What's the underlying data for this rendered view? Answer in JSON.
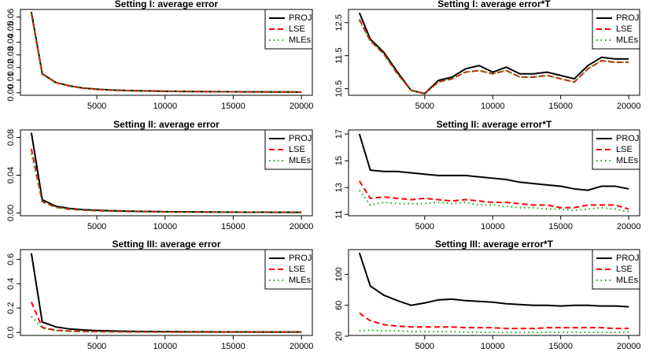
{
  "chart_data": [
    {
      "type": "line",
      "title": "Setting I: average error",
      "legend": "topright",
      "x": [
        200,
        1000,
        2000,
        3000,
        4000,
        5000,
        6000,
        7000,
        8000,
        9000,
        10000,
        11000,
        12000,
        13000,
        14000,
        15000,
        16000,
        17000,
        18000,
        19000,
        20000
      ],
      "xlim": [
        -600,
        20800
      ],
      "xticks": [
        5000,
        10000,
        15000,
        20000
      ],
      "ylim": [
        -0.002,
        0.066
      ],
      "yticks": [
        {
          "value": 0,
          "label": "0.00"
        },
        {
          "value": 0.01,
          "label": "0.01"
        },
        {
          "value": 0.02,
          "label": "0.02"
        },
        {
          "value": 0.03,
          "label": "0.03"
        },
        {
          "value": 0.04,
          "label": "0.04"
        },
        {
          "value": 0.05,
          "label": "0.05"
        },
        {
          "value": 0.06,
          "label": "0.06"
        }
      ],
      "series": [
        {
          "name": "PROJ",
          "color": "#000000",
          "values": [
            0.064,
            0.015,
            0.0081,
            0.0055,
            0.0037,
            0.0028,
            0.0022,
            0.0018,
            0.0016,
            0.0014,
            0.0012,
            0.0011,
            0.001,
            0.0009,
            0.00085,
            0.0008,
            0.00075,
            0.0007,
            0.00066,
            0.00063,
            0.0006
          ]
        },
        {
          "name": "LSE",
          "color": "#ff0000",
          "values": [
            0.063,
            0.0148,
            0.008,
            0.0054,
            0.0036,
            0.0027,
            0.0021,
            0.0018,
            0.0015,
            0.0013,
            0.0012,
            0.0011,
            0.001,
            0.0009,
            0.00083,
            0.00078,
            0.00073,
            0.00068,
            0.00064,
            0.00061,
            0.00058
          ]
        },
        {
          "name": "MLEs",
          "color": "#00b000",
          "values": [
            0.062,
            0.0146,
            0.0079,
            0.0053,
            0.0036,
            0.0027,
            0.0021,
            0.0017,
            0.0015,
            0.0013,
            0.0012,
            0.0011,
            0.00098,
            0.00089,
            0.00082,
            0.00077,
            0.00072,
            0.00067,
            0.00063,
            0.0006,
            0.00057
          ]
        }
      ]
    },
    {
      "type": "line",
      "title": "Setting I: average error*T",
      "legend": "topright",
      "x": [
        200,
        1000,
        2000,
        3000,
        4000,
        5000,
        6000,
        7000,
        8000,
        9000,
        10000,
        11000,
        12000,
        13000,
        14000,
        15000,
        16000,
        17000,
        18000,
        19000,
        20000
      ],
      "xlim": [
        -600,
        20800
      ],
      "xticks": [
        5000,
        10000,
        15000,
        20000
      ],
      "ylim": [
        10.3,
        12.9
      ],
      "yticks": [
        10.5,
        11.5,
        12.5
      ],
      "series": [
        {
          "name": "PROJ",
          "color": "#000000",
          "values": [
            12.8,
            12.0,
            11.6,
            11.0,
            10.45,
            10.35,
            10.75,
            10.85,
            11.1,
            11.2,
            11.0,
            11.15,
            10.95,
            10.95,
            11.0,
            10.9,
            10.8,
            11.2,
            11.45,
            11.4,
            11.4
          ]
        },
        {
          "name": "LSE",
          "color": "#ff0000",
          "values": [
            12.6,
            11.95,
            11.55,
            10.95,
            10.45,
            10.35,
            10.7,
            10.8,
            11.0,
            11.05,
            10.95,
            11.05,
            10.85,
            10.85,
            10.9,
            10.8,
            10.7,
            11.1,
            11.35,
            11.3,
            11.3
          ]
        },
        {
          "name": "MLEs",
          "color": "#00b000",
          "values": [
            12.55,
            11.95,
            11.55,
            10.95,
            10.45,
            10.35,
            10.7,
            10.8,
            11.0,
            11.05,
            10.95,
            11.05,
            10.85,
            10.85,
            10.9,
            10.8,
            10.7,
            11.1,
            11.35,
            11.3,
            11.3
          ]
        }
      ]
    },
    {
      "type": "line",
      "title": "Setting II: average error",
      "legend": "topright",
      "x": [
        200,
        1000,
        2000,
        3000,
        4000,
        5000,
        6000,
        7000,
        8000,
        9000,
        10000,
        11000,
        12000,
        13000,
        14000,
        15000,
        16000,
        17000,
        18000,
        19000,
        20000
      ],
      "xlim": [
        -600,
        20800
      ],
      "xticks": [
        5000,
        10000,
        15000,
        20000
      ],
      "ylim": [
        -0.003,
        0.088
      ],
      "yticks": [
        {
          "value": 0,
          "label": "0.00"
        },
        {
          "value": 0.04,
          "label": "0.04"
        },
        {
          "value": 0.08,
          "label": "0.08"
        }
      ],
      "series": [
        {
          "name": "PROJ",
          "color": "#000000",
          "values": [
            0.085,
            0.014,
            0.007,
            0.0047,
            0.0035,
            0.0028,
            0.0023,
            0.002,
            0.0017,
            0.0015,
            0.0013,
            0.0012,
            0.0011,
            0.001,
            0.0009,
            0.00085,
            0.0008,
            0.00075,
            0.0007,
            0.00068,
            0.00065
          ]
        },
        {
          "name": "LSE",
          "color": "#ff0000",
          "values": [
            0.068,
            0.012,
            0.006,
            0.004,
            0.003,
            0.0024,
            0.002,
            0.0017,
            0.0015,
            0.0013,
            0.0011,
            0.001,
            0.00095,
            0.00088,
            0.0008,
            0.00075,
            0.0007,
            0.00066,
            0.00062,
            0.0006,
            0.00057
          ]
        },
        {
          "name": "MLEs",
          "color": "#00b000",
          "values": [
            0.063,
            0.0115,
            0.0058,
            0.0039,
            0.0029,
            0.0023,
            0.0019,
            0.0016,
            0.0014,
            0.0012,
            0.0011,
            0.00098,
            0.0009,
            0.00084,
            0.00077,
            0.00072,
            0.00068,
            0.00064,
            0.0006,
            0.00058,
            0.00055
          ]
        }
      ]
    },
    {
      "type": "line",
      "title": "Setting II: average error*T",
      "legend": "topright",
      "x": [
        200,
        1000,
        2000,
        3000,
        4000,
        5000,
        6000,
        7000,
        8000,
        9000,
        10000,
        11000,
        12000,
        13000,
        14000,
        15000,
        16000,
        17000,
        18000,
        19000,
        20000
      ],
      "xlim": [
        -600,
        20800
      ],
      "xticks": [
        5000,
        10000,
        15000,
        20000
      ],
      "ylim": [
        10.9,
        17.3
      ],
      "yticks": [
        11,
        13,
        15,
        17
      ],
      "series": [
        {
          "name": "PROJ",
          "color": "#000000",
          "values": [
            17.0,
            14.3,
            14.2,
            14.2,
            14.1,
            14.0,
            13.9,
            13.9,
            13.9,
            13.8,
            13.7,
            13.6,
            13.4,
            13.3,
            13.2,
            13.1,
            12.9,
            12.8,
            13.1,
            13.1,
            12.9
          ]
        },
        {
          "name": "LSE",
          "color": "#ff0000",
          "values": [
            13.5,
            12.2,
            12.3,
            12.2,
            12.1,
            12.2,
            12.1,
            12.0,
            12.1,
            12.0,
            11.9,
            11.9,
            11.8,
            11.7,
            11.7,
            11.5,
            11.5,
            11.7,
            11.7,
            11.7,
            11.4
          ]
        },
        {
          "name": "MLEs",
          "color": "#00b000",
          "values": [
            12.8,
            11.7,
            11.9,
            11.8,
            11.8,
            11.8,
            11.9,
            11.8,
            11.9,
            11.7,
            11.7,
            11.6,
            11.5,
            11.5,
            11.4,
            11.4,
            11.3,
            11.4,
            11.5,
            11.4,
            11.2
          ]
        }
      ]
    },
    {
      "type": "line",
      "title": "Setting III: average error",
      "legend": "topright",
      "x": [
        200,
        1000,
        2000,
        3000,
        4000,
        5000,
        6000,
        7000,
        8000,
        9000,
        10000,
        11000,
        12000,
        13000,
        14000,
        15000,
        16000,
        17000,
        18000,
        19000,
        20000
      ],
      "xlim": [
        -600,
        20800
      ],
      "xticks": [
        5000,
        10000,
        15000,
        20000
      ],
      "ylim": [
        -0.025,
        0.68
      ],
      "yticks": [
        {
          "value": 0,
          "label": "0.0"
        },
        {
          "value": 0.2,
          "label": "0.2"
        },
        {
          "value": 0.4,
          "label": "0.4"
        },
        {
          "value": 0.6,
          "label": "0.6"
        }
      ],
      "series": [
        {
          "name": "PROJ",
          "color": "#000000",
          "values": [
            0.65,
            0.085,
            0.045,
            0.028,
            0.02,
            0.015,
            0.012,
            0.01,
            0.008,
            0.0072,
            0.0065,
            0.0058,
            0.0052,
            0.0048,
            0.0045,
            0.0042,
            0.0039,
            0.0037,
            0.0035,
            0.0032,
            0.003
          ]
        },
        {
          "name": "LSE",
          "color": "#ff0000",
          "values": [
            0.25,
            0.04,
            0.018,
            0.011,
            0.008,
            0.0065,
            0.0055,
            0.0046,
            0.004,
            0.0035,
            0.0031,
            0.0028,
            0.0025,
            0.0023,
            0.0022,
            0.0021,
            0.002,
            0.0019,
            0.0018,
            0.0016,
            0.0015
          ]
        },
        {
          "name": "MLEs",
          "color": "#00b000",
          "values": [
            0.13,
            0.035,
            0.014,
            0.009,
            0.0066,
            0.0052,
            0.0044,
            0.0037,
            0.0032,
            0.0028,
            0.0025,
            0.0023,
            0.0021,
            0.0019,
            0.0018,
            0.0017,
            0.0016,
            0.0015,
            0.0014,
            0.0013,
            0.0012
          ]
        }
      ]
    },
    {
      "type": "line",
      "title": "Setting III: average error*T",
      "legend": "topright",
      "x": [
        200,
        1000,
        2000,
        3000,
        4000,
        5000,
        6000,
        7000,
        8000,
        9000,
        10000,
        11000,
        12000,
        13000,
        14000,
        15000,
        16000,
        17000,
        18000,
        19000,
        20000
      ],
      "xlim": [
        -600,
        20800
      ],
      "xticks": [
        5000,
        10000,
        15000,
        20000
      ],
      "ylim": [
        21,
        132
      ],
      "yticks": [
        20,
        60,
        100
      ],
      "series": [
        {
          "name": "PROJ",
          "color": "#000000",
          "values": [
            128,
            85,
            73,
            66,
            60,
            63,
            67,
            68,
            66,
            65,
            64,
            62,
            61,
            60,
            60,
            59,
            60,
            60,
            59,
            59,
            58
          ]
        },
        {
          "name": "LSE",
          "color": "#ff0000",
          "values": [
            50,
            40,
            35,
            33,
            32,
            32,
            32,
            32,
            31,
            31,
            31,
            30,
            30,
            30,
            31,
            31,
            31,
            31,
            31,
            30,
            30
          ]
        },
        {
          "name": "MLEs",
          "color": "#00b000",
          "values": [
            27,
            28,
            27,
            27,
            26,
            26,
            26,
            26,
            25,
            25,
            25,
            25,
            25,
            25,
            25,
            25,
            25,
            25,
            25,
            25,
            25
          ]
        }
      ]
    }
  ]
}
